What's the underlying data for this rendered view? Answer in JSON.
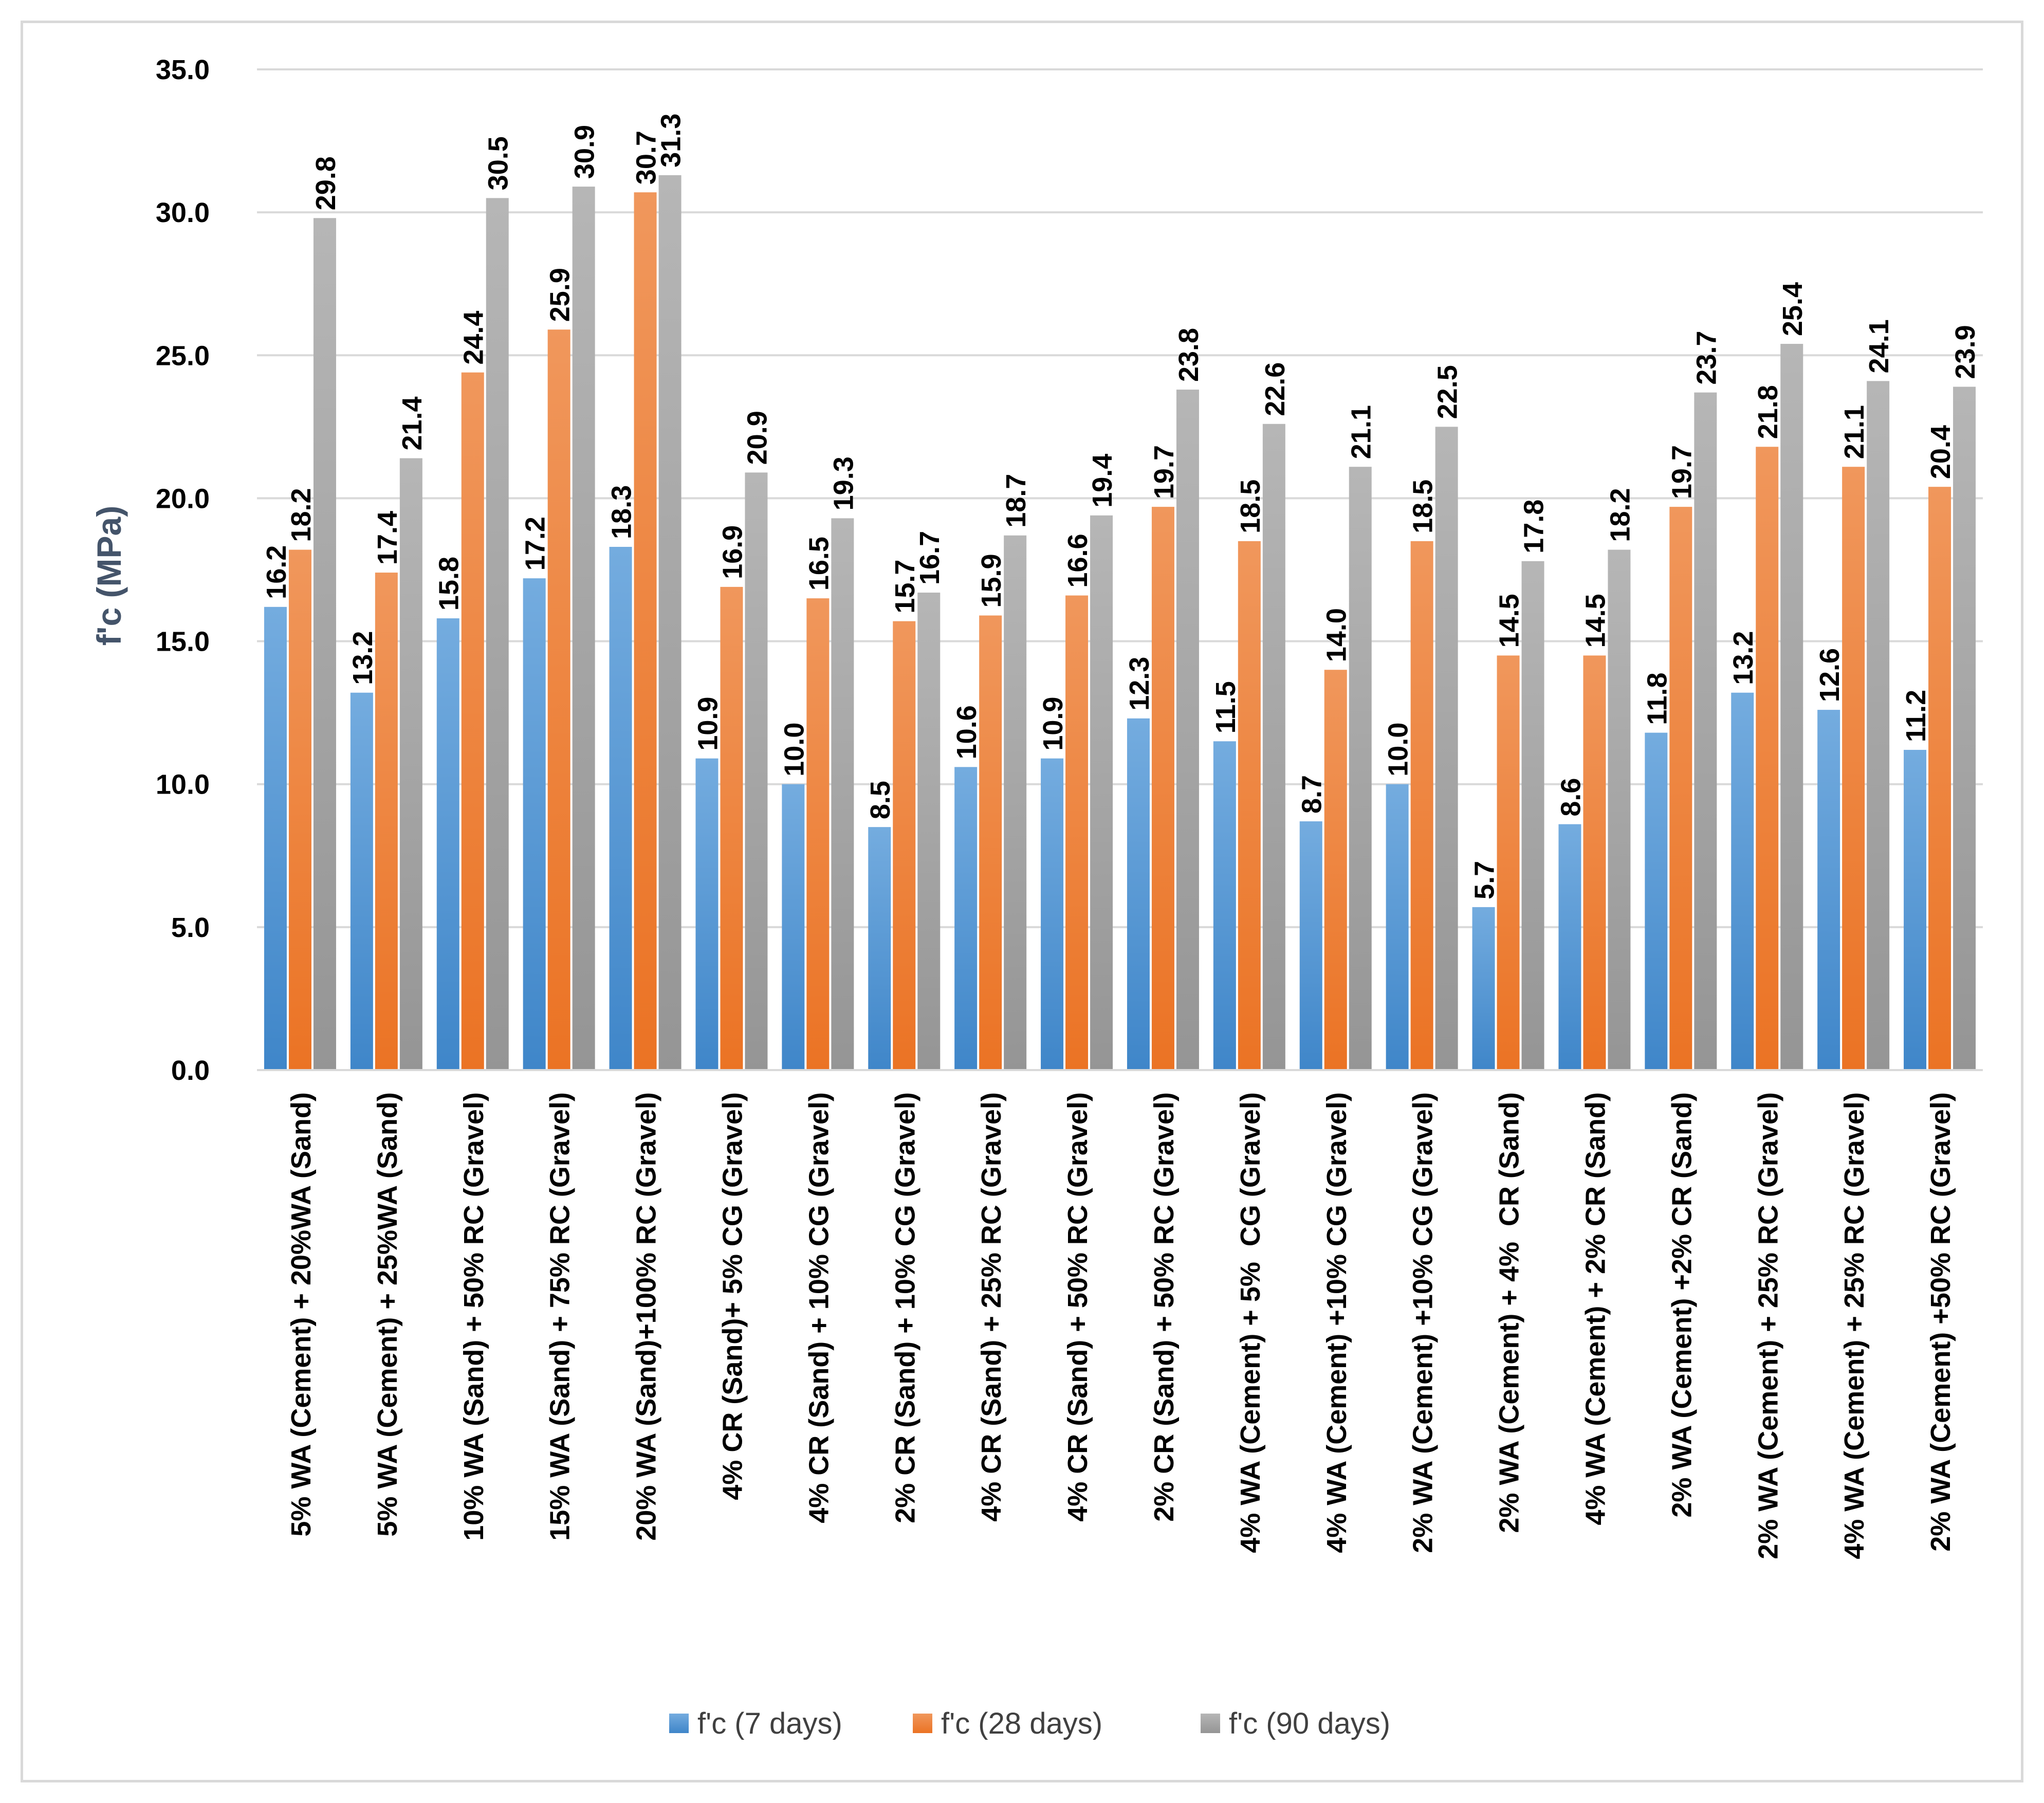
{
  "chart_data": {
    "type": "bar",
    "title": "",
    "xlabel": "",
    "ylabel": "f'c (MPa)",
    "ylim": [
      0,
      35
    ],
    "yticks": [
      "0.0",
      "5.0",
      "10.0",
      "15.0",
      "20.0",
      "25.0",
      "30.0",
      "35.0"
    ],
    "grid": true,
    "legend_position": "bottom",
    "categories": [
      "5% WA (Cement) + 20%WA (Sand)",
      "5% WA (Cement) + 25%WA (Sand)",
      "10% WA (Sand) + 50% RC (Gravel)",
      "15% WA (Sand) + 75% RC (Gravel)",
      "20% WA (Sand)+100% RC (Gravel)",
      "4% CR (Sand)+ 5% CG (Gravel)",
      "4% CR (Sand) + 10% CG (Gravel)",
      "2% CR (Sand) + 10% CG (Gravel)",
      "4% CR (Sand) + 25% RC (Gravel)",
      "4% CR (Sand) + 50% RC (Gravel)",
      "2% CR (Sand) + 50% RC (Gravel)",
      "4% WA (Cement) + 5%  CG (Gravel)",
      "4% WA (Cement) +10% CG (Gravel)",
      "2% WA (Cement) +10% CG (Gravel)",
      "2% WA (Cement) + 4%  CR (Sand)",
      "4% WA (Cement) + 2% CR (Sand)",
      "2% WA (Cement) +2% CR (Sand)",
      "2% WA (Cement) + 25% RC (Gravel)",
      "4% WA (Cement) + 25% RC (Gravel)",
      "2% WA (Cement) +50% RC (Gravel)"
    ],
    "series": [
      {
        "name": "f'c (7 days)",
        "color": "#5b9bd5",
        "values": [
          16.2,
          13.2,
          15.8,
          17.2,
          18.3,
          10.9,
          10.0,
          8.5,
          10.6,
          10.9,
          12.3,
          11.5,
          8.7,
          10.0,
          5.7,
          8.6,
          11.8,
          13.2,
          12.6,
          11.2
        ],
        "labels": [
          "16.2",
          "13.2",
          "15.8",
          "17.2",
          "18.3",
          "10.9",
          "10.0",
          "8.5",
          "10.6",
          "10.9",
          "12.3",
          "11.5",
          "8.7",
          "10.0",
          "5.7",
          "8.6",
          "11.8",
          "13.2",
          "12.6",
          "11.2"
        ]
      },
      {
        "name": "f'c (28 days)",
        "color": "#ed7d31",
        "values": [
          18.2,
          17.4,
          24.4,
          25.9,
          30.7,
          16.9,
          16.5,
          15.7,
          15.9,
          16.6,
          19.7,
          18.5,
          14.0,
          18.5,
          14.5,
          14.5,
          19.7,
          21.8,
          21.1,
          20.4
        ],
        "labels": [
          "18.2",
          "17.4",
          "24.4",
          "25.9",
          "30.7",
          "16.9",
          "16.5",
          "15.7",
          "15.9",
          "16.6",
          "19.7",
          "18.5",
          "14.0",
          "18.5",
          "14.5",
          "14.5",
          "19.7",
          "21.8",
          "21.1",
          "20.4"
        ]
      },
      {
        "name": "f'c (90 days)",
        "color": "#a5a5a5",
        "values": [
          29.8,
          21.4,
          30.5,
          30.9,
          31.3,
          20.9,
          19.3,
          16.7,
          18.7,
          19.4,
          23.8,
          22.6,
          21.1,
          22.5,
          17.8,
          18.2,
          23.7,
          25.4,
          24.1,
          23.9
        ],
        "labels": [
          "29.8",
          "21.4",
          "30.5",
          "30.9",
          "31.3",
          "20.9",
          "19.3",
          "16.7",
          "18.7",
          "19.4",
          "23.8",
          "22.6",
          "21.1",
          "22.5",
          "17.8",
          "18.2",
          "23.7",
          "25.4",
          "24.1",
          "23.9"
        ]
      }
    ]
  }
}
